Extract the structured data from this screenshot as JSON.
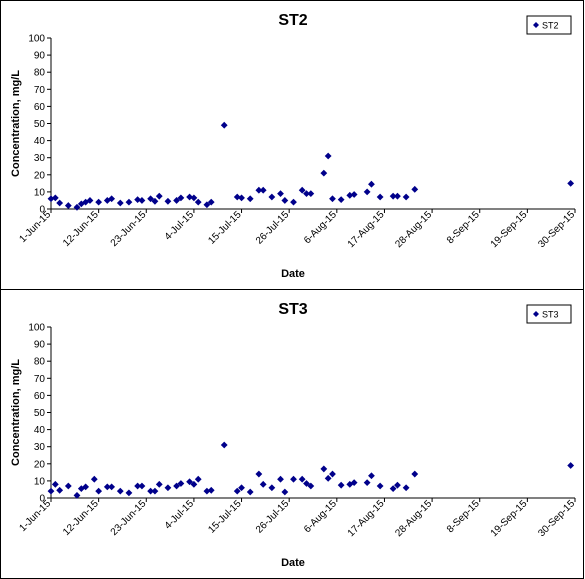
{
  "chart_data": [
    {
      "type": "scatter",
      "title": "ST2",
      "xlabel": "Date",
      "ylabel": "Concentration, mg/L",
      "ylim": [
        0,
        100
      ],
      "yticks": [
        0,
        10,
        20,
        30,
        40,
        50,
        60,
        70,
        80,
        90,
        100
      ],
      "xlim": [
        "2015-06-01",
        "2015-09-30"
      ],
      "xticks": [
        "1-Jun-15",
        "12-Jun-15",
        "23-Jun-15",
        "4-Jul-15",
        "15-Jul-15",
        "26-Jul-15",
        "6-Aug-15",
        "17-Aug-15",
        "28-Aug-15",
        "8-Sep-15",
        "19-Sep-15",
        "30-Sep-15"
      ],
      "legend": "top-right",
      "grid": false,
      "marker_color": "#00008B",
      "series": [
        {
          "name": "ST2",
          "points": [
            {
              "x": "2015-06-01",
              "y": 6
            },
            {
              "x": "2015-06-02",
              "y": 6.5
            },
            {
              "x": "2015-06-03",
              "y": 3.5
            },
            {
              "x": "2015-06-05",
              "y": 2
            },
            {
              "x": "2015-06-07",
              "y": 1
            },
            {
              "x": "2015-06-08",
              "y": 3
            },
            {
              "x": "2015-06-09",
              "y": 4
            },
            {
              "x": "2015-06-10",
              "y": 5
            },
            {
              "x": "2015-06-12",
              "y": 4
            },
            {
              "x": "2015-06-14",
              "y": 5
            },
            {
              "x": "2015-06-15",
              "y": 6
            },
            {
              "x": "2015-06-17",
              "y": 3.5
            },
            {
              "x": "2015-06-19",
              "y": 4
            },
            {
              "x": "2015-06-21",
              "y": 5.5
            },
            {
              "x": "2015-06-22",
              "y": 5
            },
            {
              "x": "2015-06-24",
              "y": 6
            },
            {
              "x": "2015-06-25",
              "y": 4.5
            },
            {
              "x": "2015-06-26",
              "y": 7.5
            },
            {
              "x": "2015-06-28",
              "y": 4.5
            },
            {
              "x": "2015-06-30",
              "y": 5
            },
            {
              "x": "2015-07-01",
              "y": 6.5
            },
            {
              "x": "2015-07-03",
              "y": 7
            },
            {
              "x": "2015-07-04",
              "y": 6.5
            },
            {
              "x": "2015-07-05",
              "y": 4
            },
            {
              "x": "2015-07-07",
              "y": 2.5
            },
            {
              "x": "2015-07-08",
              "y": 4
            },
            {
              "x": "2015-07-11",
              "y": 49
            },
            {
              "x": "2015-07-14",
              "y": 7
            },
            {
              "x": "2015-07-15",
              "y": 6.5
            },
            {
              "x": "2015-07-17",
              "y": 6
            },
            {
              "x": "2015-07-19",
              "y": 11
            },
            {
              "x": "2015-07-20",
              "y": 11
            },
            {
              "x": "2015-07-22",
              "y": 7
            },
            {
              "x": "2015-07-24",
              "y": 9
            },
            {
              "x": "2015-07-25",
              "y": 5
            },
            {
              "x": "2015-07-27",
              "y": 4
            },
            {
              "x": "2015-07-29",
              "y": 11
            },
            {
              "x": "2015-07-30",
              "y": 9
            },
            {
              "x": "2015-07-31",
              "y": 9
            },
            {
              "x": "2015-08-03",
              "y": 21
            },
            {
              "x": "2015-08-04",
              "y": 31
            },
            {
              "x": "2015-08-05",
              "y": 6
            },
            {
              "x": "2015-08-07",
              "y": 5.5
            },
            {
              "x": "2015-08-09",
              "y": 8
            },
            {
              "x": "2015-08-10",
              "y": 8.5
            },
            {
              "x": "2015-08-13",
              "y": 10
            },
            {
              "x": "2015-08-14",
              "y": 14.5
            },
            {
              "x": "2015-08-16",
              "y": 7
            },
            {
              "x": "2015-08-19",
              "y": 7.5
            },
            {
              "x": "2015-08-20",
              "y": 7.5
            },
            {
              "x": "2015-08-22",
              "y": 7
            },
            {
              "x": "2015-08-24",
              "y": 11.5
            },
            {
              "x": "2015-09-29",
              "y": 15
            }
          ]
        }
      ]
    },
    {
      "type": "scatter",
      "title": "ST3",
      "xlabel": "Date",
      "ylabel": "Concentration, mg/L",
      "ylim": [
        0,
        100
      ],
      "yticks": [
        0,
        10,
        20,
        30,
        40,
        50,
        60,
        70,
        80,
        90,
        100
      ],
      "xlim": [
        "2015-06-01",
        "2015-09-30"
      ],
      "xticks": [
        "1-Jun-15",
        "12-Jun-15",
        "23-Jun-15",
        "4-Jul-15",
        "15-Jul-15",
        "26-Jul-15",
        "6-Aug-15",
        "17-Aug-15",
        "28-Aug-15",
        "8-Sep-15",
        "19-Sep-15",
        "30-Sep-15"
      ],
      "legend": "top-right",
      "grid": false,
      "marker_color": "#00008B",
      "series": [
        {
          "name": "ST3",
          "points": [
            {
              "x": "2015-06-01",
              "y": 4
            },
            {
              "x": "2015-06-02",
              "y": 8
            },
            {
              "x": "2015-06-03",
              "y": 4.5
            },
            {
              "x": "2015-06-05",
              "y": 7
            },
            {
              "x": "2015-06-07",
              "y": 1.5
            },
            {
              "x": "2015-06-08",
              "y": 5.5
            },
            {
              "x": "2015-06-09",
              "y": 6.5
            },
            {
              "x": "2015-06-11",
              "y": 11
            },
            {
              "x": "2015-06-12",
              "y": 4
            },
            {
              "x": "2015-06-14",
              "y": 6.5
            },
            {
              "x": "2015-06-15",
              "y": 6.5
            },
            {
              "x": "2015-06-17",
              "y": 4
            },
            {
              "x": "2015-06-19",
              "y": 3
            },
            {
              "x": "2015-06-21",
              "y": 7
            },
            {
              "x": "2015-06-22",
              "y": 7
            },
            {
              "x": "2015-06-24",
              "y": 4
            },
            {
              "x": "2015-06-25",
              "y": 4
            },
            {
              "x": "2015-06-26",
              "y": 8
            },
            {
              "x": "2015-06-28",
              "y": 6
            },
            {
              "x": "2015-06-30",
              "y": 7
            },
            {
              "x": "2015-07-01",
              "y": 8.5
            },
            {
              "x": "2015-07-03",
              "y": 9.5
            },
            {
              "x": "2015-07-04",
              "y": 8
            },
            {
              "x": "2015-07-05",
              "y": 11
            },
            {
              "x": "2015-07-07",
              "y": 4
            },
            {
              "x": "2015-07-08",
              "y": 4.5
            },
            {
              "x": "2015-07-11",
              "y": 31
            },
            {
              "x": "2015-07-14",
              "y": 4
            },
            {
              "x": "2015-07-15",
              "y": 6
            },
            {
              "x": "2015-07-17",
              "y": 3.5
            },
            {
              "x": "2015-07-19",
              "y": 14
            },
            {
              "x": "2015-07-20",
              "y": 8
            },
            {
              "x": "2015-07-22",
              "y": 6
            },
            {
              "x": "2015-07-24",
              "y": 11
            },
            {
              "x": "2015-07-25",
              "y": 3.5
            },
            {
              "x": "2015-07-27",
              "y": 11
            },
            {
              "x": "2015-07-29",
              "y": 11
            },
            {
              "x": "2015-07-30",
              "y": 8.5
            },
            {
              "x": "2015-07-31",
              "y": 7
            },
            {
              "x": "2015-08-03",
              "y": 17
            },
            {
              "x": "2015-08-04",
              "y": 11.5
            },
            {
              "x": "2015-08-05",
              "y": 14
            },
            {
              "x": "2015-08-07",
              "y": 7.5
            },
            {
              "x": "2015-08-09",
              "y": 8
            },
            {
              "x": "2015-08-10",
              "y": 9
            },
            {
              "x": "2015-08-13",
              "y": 9
            },
            {
              "x": "2015-08-14",
              "y": 13
            },
            {
              "x": "2015-08-16",
              "y": 7
            },
            {
              "x": "2015-08-19",
              "y": 5.5
            },
            {
              "x": "2015-08-20",
              "y": 7.5
            },
            {
              "x": "2015-08-22",
              "y": 6
            },
            {
              "x": "2015-08-24",
              "y": 14
            },
            {
              "x": "2015-09-29",
              "y": 19
            }
          ]
        }
      ]
    }
  ]
}
